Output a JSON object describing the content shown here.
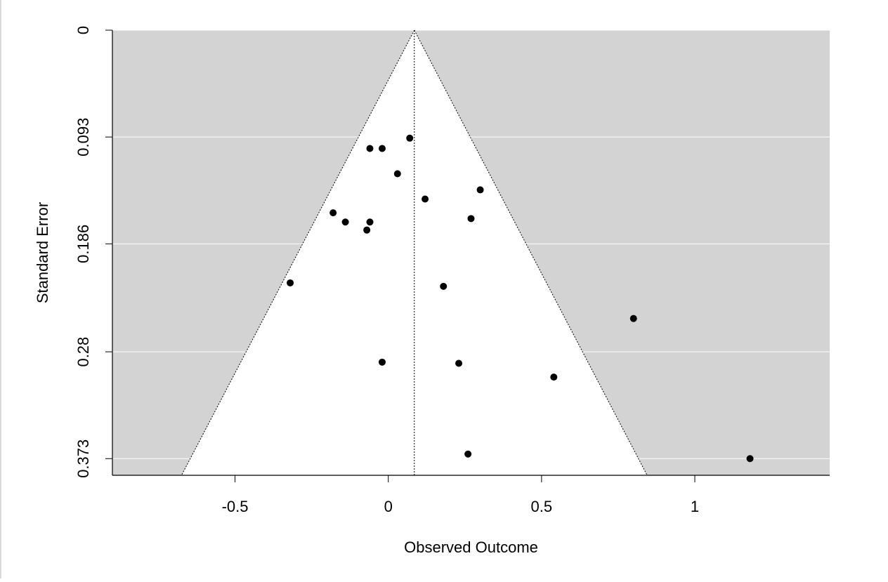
{
  "chart_data": {
    "type": "scatter",
    "subtype": "funnel",
    "xlabel": "Observed Outcome",
    "ylabel": "Standard Error",
    "xlim": [
      -0.9,
      1.44
    ],
    "ylim": [
      0.3875,
      0
    ],
    "y_inverted": true,
    "x_ticks": [
      -0.5,
      0,
      0.5,
      1
    ],
    "x_tick_labels": [
      "-0.5",
      "0",
      "0.5",
      "1"
    ],
    "y_ticks": [
      0,
      0.093,
      0.186,
      0.28,
      0.373
    ],
    "y_tick_labels": [
      "0",
      "0.093",
      "0.186",
      "0.28",
      "0.373"
    ],
    "grid": "horizontal",
    "center_estimate": 0.085,
    "funnel_z": 1.96,
    "colors": {
      "panel_background": "#d3d3d3",
      "funnel_fill": "#ffffff",
      "gridline": "#ffffff",
      "point": "#000000",
      "funnel_line": "#000000"
    },
    "points": [
      {
        "x": 0.07,
        "y": 0.094
      },
      {
        "x": -0.06,
        "y": 0.103
      },
      {
        "x": -0.02,
        "y": 0.103
      },
      {
        "x": 0.03,
        "y": 0.125
      },
      {
        "x": 0.3,
        "y": 0.139
      },
      {
        "x": 0.12,
        "y": 0.147
      },
      {
        "x": -0.18,
        "y": 0.159
      },
      {
        "x": 0.27,
        "y": 0.164
      },
      {
        "x": -0.14,
        "y": 0.167
      },
      {
        "x": -0.06,
        "y": 0.167
      },
      {
        "x": -0.07,
        "y": 0.174
      },
      {
        "x": -0.32,
        "y": 0.22
      },
      {
        "x": 0.18,
        "y": 0.223
      },
      {
        "x": 0.8,
        "y": 0.251
      },
      {
        "x": -0.02,
        "y": 0.289
      },
      {
        "x": 0.23,
        "y": 0.29
      },
      {
        "x": 0.54,
        "y": 0.302
      },
      {
        "x": 0.26,
        "y": 0.369
      },
      {
        "x": 1.18,
        "y": 0.373
      }
    ]
  }
}
